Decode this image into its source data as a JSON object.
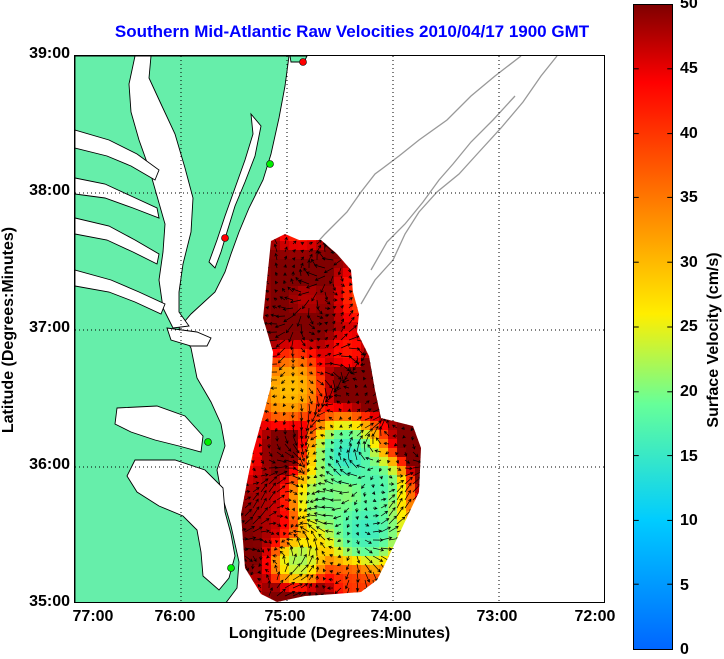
{
  "title": "Southern Mid-Atlantic Raw Velocities 2010/04/17 1900 GMT",
  "x_axis": {
    "label": "Longitude (Degrees:Minutes)",
    "ticks": [
      "77:00",
      "76:00",
      "75:00",
      "74:00",
      "73:00",
      "72:00"
    ]
  },
  "y_axis": {
    "label": "Latitude (Degrees:Minutes)",
    "ticks": [
      "39:00",
      "38:00",
      "37:00",
      "36:00",
      "35:00"
    ]
  },
  "colorbar": {
    "label": "Surface Velocity (cm/s)",
    "ticks": [
      "50",
      "45",
      "40",
      "35",
      "30",
      "25",
      "20",
      "15",
      "10",
      "5",
      "0"
    ],
    "min": 0,
    "max": 50
  },
  "colors": {
    "land": "#66eeaa",
    "coastline": "#000000",
    "bathymetry": "#999999",
    "title": "#0000ff"
  }
}
